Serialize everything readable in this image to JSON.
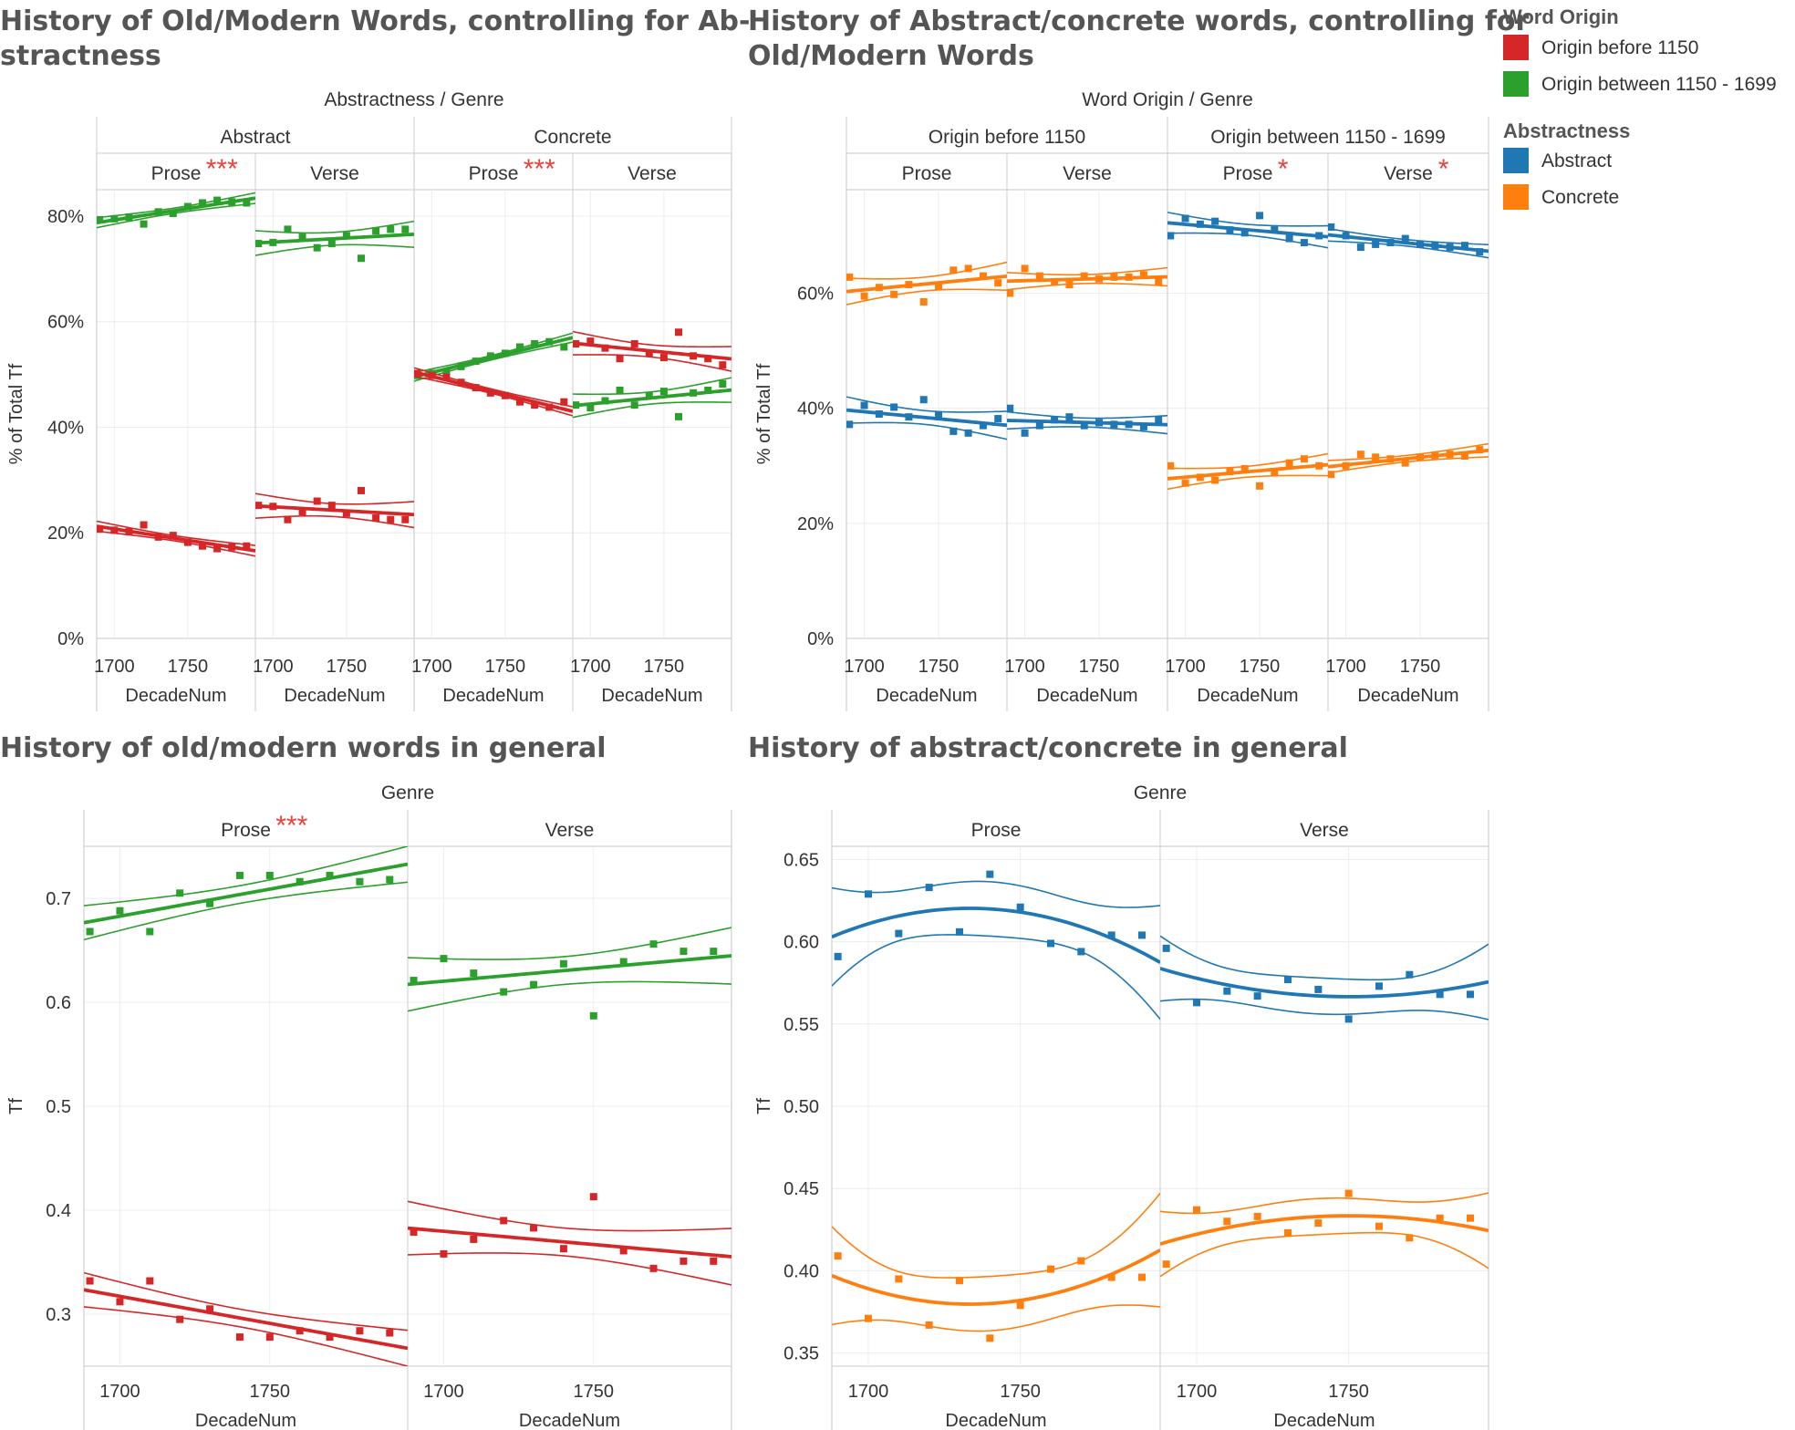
{
  "legend": {
    "word_origin_title": "Word Origin",
    "word_origin_items": [
      {
        "label": "Origin before 1150",
        "color": "#d62728"
      },
      {
        "label": "Origin between 1150 - 1699",
        "color": "#2ca02c"
      }
    ],
    "abstractness_title": "Abstractness",
    "abstractness_items": [
      {
        "label": "Abstract",
        "color": "#1f77b4"
      },
      {
        "label": "Concrete",
        "color": "#ff7f0e"
      }
    ]
  },
  "chart_data": [
    {
      "type": "scatter",
      "title_lines": [
        "History of Old/Modern Words, controlling for Ab-",
        "stractness"
      ],
      "column_header_title": "Abstractness  /  Genre",
      "ylabel": "% of Total Tf",
      "xlabel": "DecadeNum",
      "ylim": [
        0,
        85
      ],
      "yticks": [
        0,
        20,
        40,
        60,
        80
      ],
      "ytick_labels": [
        "0%",
        "20%",
        "40%",
        "60%",
        "80%"
      ],
      "xlim": [
        1688,
        1796
      ],
      "xticks": [
        1700,
        1750
      ],
      "xtick_labels": [
        "1700",
        "1750"
      ],
      "trend": "linear",
      "groups": [
        "Abstract",
        "Concrete"
      ],
      "panels": [
        {
          "group": "Abstract",
          "genre": "Prose",
          "stars": "***",
          "series": [
            {
              "color": "#2ca02c",
              "x": [
                1690,
                1700,
                1710,
                1720,
                1730,
                1740,
                1750,
                1760,
                1770,
                1780,
                1790
              ],
              "y": [
                79.3,
                79.5,
                79.8,
                78.5,
                80.8,
                80.5,
                81.8,
                82.5,
                83,
                82.7,
                82.5
              ]
            },
            {
              "color": "#d62728",
              "x": [
                1690,
                1700,
                1710,
                1720,
                1730,
                1740,
                1750,
                1760,
                1770,
                1780,
                1790
              ],
              "y": [
                20.7,
                20.5,
                20.2,
                21.5,
                19.2,
                19.5,
                18.2,
                17.5,
                17,
                17.3,
                17.5
              ]
            }
          ]
        },
        {
          "group": "Abstract",
          "genre": "Verse",
          "stars": "",
          "series": [
            {
              "color": "#2ca02c",
              "x": [
                1690,
                1700,
                1710,
                1720,
                1730,
                1740,
                1750,
                1760,
                1770,
                1780,
                1790
              ],
              "y": [
                74.8,
                75,
                77.5,
                76,
                74,
                74.8,
                76.3,
                72,
                77.2,
                77.5,
                77.5
              ]
            },
            {
              "color": "#d62728",
              "x": [
                1690,
                1700,
                1710,
                1720,
                1730,
                1740,
                1750,
                1760,
                1770,
                1780,
                1790
              ],
              "y": [
                25.2,
                25,
                22.5,
                24,
                26,
                25.2,
                23.7,
                28,
                22.8,
                22.5,
                22.5
              ]
            }
          ]
        },
        {
          "group": "Concrete",
          "genre": "Prose",
          "stars": "***",
          "series": [
            {
              "color": "#2ca02c",
              "x": [
                1690,
                1700,
                1710,
                1720,
                1730,
                1740,
                1750,
                1760,
                1770,
                1780,
                1790
              ],
              "y": [
                49.8,
                50.2,
                50.5,
                51.5,
                52.5,
                53.5,
                54,
                55.2,
                55.8,
                56.2,
                55.2
              ]
            },
            {
              "color": "#d62728",
              "x": [
                1690,
                1700,
                1710,
                1720,
                1730,
                1740,
                1750,
                1760,
                1770,
                1780,
                1790
              ],
              "y": [
                50.2,
                49.8,
                49.5,
                48.5,
                47.5,
                46.5,
                46,
                44.8,
                44.2,
                43.8,
                44.8
              ]
            }
          ]
        },
        {
          "group": "Concrete",
          "genre": "Verse",
          "stars": "",
          "series": [
            {
              "color": "#d62728",
              "x": [
                1690,
                1700,
                1710,
                1720,
                1730,
                1740,
                1750,
                1760,
                1770,
                1780,
                1790
              ],
              "y": [
                55.8,
                56.3,
                55,
                53,
                55.8,
                54,
                53.2,
                58,
                53.5,
                53,
                51.8
              ]
            },
            {
              "color": "#2ca02c",
              "x": [
                1690,
                1700,
                1710,
                1720,
                1730,
                1740,
                1750,
                1760,
                1770,
                1780,
                1790
              ],
              "y": [
                44.2,
                43.7,
                45,
                47,
                44.2,
                46,
                46.8,
                42,
                46.5,
                47,
                48.2
              ]
            }
          ]
        }
      ]
    },
    {
      "type": "scatter",
      "title_lines": [
        "History of Abstract/concrete words, controlling for",
        "Old/Modern Words"
      ],
      "column_header_title": "Word Origin  /  Genre",
      "ylabel": "% of Total Tf",
      "xlabel": "DecadeNum",
      "ylim": [
        0,
        78
      ],
      "yticks": [
        0,
        20,
        40,
        60
      ],
      "ytick_labels": [
        "0%",
        "20%",
        "40%",
        "60%"
      ],
      "xlim": [
        1688,
        1796
      ],
      "xticks": [
        1700,
        1750
      ],
      "xtick_labels": [
        "1700",
        "1750"
      ],
      "trend": "linear",
      "groups": [
        "Origin before 1150",
        "Origin between 1150 - 1699"
      ],
      "panels": [
        {
          "group": "Origin before 1150",
          "genre": "Prose",
          "stars": "",
          "series": [
            {
              "color": "#ff7f0e",
              "x": [
                1690,
                1700,
                1710,
                1720,
                1730,
                1740,
                1750,
                1760,
                1770,
                1780,
                1790
              ],
              "y": [
                62.8,
                59.5,
                61,
                59.8,
                61.5,
                58.5,
                61.2,
                64,
                64.3,
                63,
                61.8
              ]
            },
            {
              "color": "#1f77b4",
              "x": [
                1690,
                1700,
                1710,
                1720,
                1730,
                1740,
                1750,
                1760,
                1770,
                1780,
                1790
              ],
              "y": [
                37.2,
                40.5,
                39,
                40.2,
                38.5,
                41.5,
                38.8,
                36,
                35.7,
                37,
                38.2
              ]
            }
          ]
        },
        {
          "group": "Origin before 1150",
          "genre": "Verse",
          "stars": "",
          "series": [
            {
              "color": "#ff7f0e",
              "x": [
                1690,
                1700,
                1710,
                1720,
                1730,
                1740,
                1750,
                1760,
                1770,
                1780,
                1790
              ],
              "y": [
                60,
                64.3,
                63,
                62,
                61.5,
                63,
                62.5,
                62.8,
                62.8,
                63.2,
                62
              ]
            },
            {
              "color": "#1f77b4",
              "x": [
                1690,
                1700,
                1710,
                1720,
                1730,
                1740,
                1750,
                1760,
                1770,
                1780,
                1790
              ],
              "y": [
                40,
                35.7,
                37,
                38,
                38.5,
                37,
                37.5,
                37.2,
                37.2,
                36.8,
                38
              ]
            }
          ]
        },
        {
          "group": "Origin between 1150 - 1699",
          "genre": "Prose",
          "stars": "*",
          "series": [
            {
              "color": "#1f77b4",
              "x": [
                1690,
                1700,
                1710,
                1720,
                1730,
                1740,
                1750,
                1760,
                1770,
                1780,
                1790
              ],
              "y": [
                70,
                73,
                72,
                72.5,
                71,
                70.5,
                73.5,
                71,
                69.5,
                68.8,
                70
              ]
            },
            {
              "color": "#ff7f0e",
              "x": [
                1690,
                1700,
                1710,
                1720,
                1730,
                1740,
                1750,
                1760,
                1770,
                1780,
                1790
              ],
              "y": [
                30,
                27,
                28,
                27.5,
                29,
                29.5,
                26.5,
                29,
                30.5,
                31.2,
                30
              ]
            }
          ]
        },
        {
          "group": "Origin between 1150 - 1699",
          "genre": "Verse",
          "stars": "*",
          "series": [
            {
              "color": "#1f77b4",
              "x": [
                1690,
                1700,
                1710,
                1720,
                1730,
                1740,
                1750,
                1760,
                1770,
                1780,
                1790
              ],
              "y": [
                71.5,
                70,
                68,
                68.5,
                68.8,
                69.5,
                68.5,
                68.3,
                68,
                68.3,
                67.2
              ]
            },
            {
              "color": "#ff7f0e",
              "x": [
                1690,
                1700,
                1710,
                1720,
                1730,
                1740,
                1750,
                1760,
                1770,
                1780,
                1790
              ],
              "y": [
                28.5,
                30,
                32,
                31.5,
                31.2,
                30.5,
                31.5,
                31.7,
                32,
                31.7,
                32.8
              ]
            }
          ]
        }
      ]
    },
    {
      "type": "scatter",
      "title_lines": [
        "History of old/modern words in general"
      ],
      "column_header_title": "Genre",
      "ylabel": "Tf",
      "xlabel": "DecadeNum",
      "ylim": [
        0.25,
        0.75
      ],
      "yticks": [
        0.3,
        0.4,
        0.5,
        0.6,
        0.7
      ],
      "ytick_labels": [
        "0.3",
        "0.4",
        "0.5",
        "0.6",
        "0.7"
      ],
      "xlim": [
        1688,
        1796
      ],
      "xticks": [
        1700,
        1750
      ],
      "xtick_labels": [
        "1700",
        "1750"
      ],
      "trend": "linear",
      "panels": [
        {
          "genre": "Prose",
          "stars": "***",
          "series": [
            {
              "color": "#2ca02c",
              "x": [
                1690,
                1700,
                1710,
                1720,
                1730,
                1740,
                1750,
                1760,
                1770,
                1780,
                1790
              ],
              "y": [
                0.668,
                0.688,
                0.668,
                0.705,
                0.695,
                0.722,
                0.722,
                0.716,
                0.722,
                0.716,
                0.718
              ]
            },
            {
              "color": "#d62728",
              "x": [
                1690,
                1700,
                1710,
                1720,
                1730,
                1740,
                1750,
                1760,
                1770,
                1780,
                1790
              ],
              "y": [
                0.332,
                0.312,
                0.332,
                0.295,
                0.305,
                0.278,
                0.278,
                0.284,
                0.278,
                0.284,
                0.282
              ]
            }
          ]
        },
        {
          "genre": "Verse",
          "stars": "",
          "series": [
            {
              "color": "#2ca02c",
              "x": [
                1690,
                1700,
                1710,
                1720,
                1730,
                1740,
                1750,
                1760,
                1770,
                1780,
                1790
              ],
              "y": [
                0.621,
                0.642,
                0.628,
                0.61,
                0.617,
                0.637,
                0.587,
                0.639,
                0.656,
                0.649,
                0.649
              ]
            },
            {
              "color": "#d62728",
              "x": [
                1690,
                1700,
                1710,
                1720,
                1730,
                1740,
                1750,
                1760,
                1770,
                1780,
                1790
              ],
              "y": [
                0.379,
                0.358,
                0.372,
                0.39,
                0.383,
                0.363,
                0.413,
                0.361,
                0.344,
                0.351,
                0.351
              ]
            }
          ]
        }
      ]
    },
    {
      "type": "scatter",
      "title_lines": [
        "History of abstract/concrete in general"
      ],
      "column_header_title": "Genre",
      "ylabel": "Tf",
      "xlabel": "DecadeNum",
      "ylim": [
        0.342,
        0.658
      ],
      "yticks": [
        0.35,
        0.4,
        0.45,
        0.5,
        0.55,
        0.6,
        0.65
      ],
      "ytick_labels": [
        "0.35",
        "0.40",
        "0.45",
        "0.50",
        "0.55",
        "0.60",
        "0.65"
      ],
      "xlim": [
        1688,
        1796
      ],
      "xticks": [
        1700,
        1750
      ],
      "xtick_labels": [
        "1700",
        "1750"
      ],
      "trend": "quadratic",
      "panels": [
        {
          "genre": "Prose",
          "stars": "",
          "series": [
            {
              "color": "#1f77b4",
              "x": [
                1690,
                1700,
                1710,
                1720,
                1730,
                1740,
                1750,
                1760,
                1770,
                1780,
                1790
              ],
              "y": [
                0.591,
                0.629,
                0.605,
                0.633,
                0.606,
                0.641,
                0.621,
                0.599,
                0.594,
                0.604,
                0.604
              ]
            },
            {
              "color": "#ff7f0e",
              "x": [
                1690,
                1700,
                1710,
                1720,
                1730,
                1740,
                1750,
                1760,
                1770,
                1780,
                1790
              ],
              "y": [
                0.409,
                0.371,
                0.395,
                0.367,
                0.394,
                0.359,
                0.379,
                0.401,
                0.406,
                0.396,
                0.396
              ]
            }
          ]
        },
        {
          "genre": "Verse",
          "stars": "",
          "series": [
            {
              "color": "#1f77b4",
              "x": [
                1690,
                1700,
                1710,
                1720,
                1730,
                1740,
                1750,
                1760,
                1770,
                1780,
                1790
              ],
              "y": [
                0.596,
                0.563,
                0.57,
                0.567,
                0.577,
                0.571,
                0.553,
                0.573,
                0.58,
                0.568,
                0.568
              ]
            },
            {
              "color": "#ff7f0e",
              "x": [
                1690,
                1700,
                1710,
                1720,
                1730,
                1740,
                1750,
                1760,
                1770,
                1780,
                1790
              ],
              "y": [
                0.404,
                0.437,
                0.43,
                0.433,
                0.423,
                0.429,
                0.447,
                0.427,
                0.42,
                0.432,
                0.432
              ]
            }
          ]
        }
      ]
    }
  ]
}
